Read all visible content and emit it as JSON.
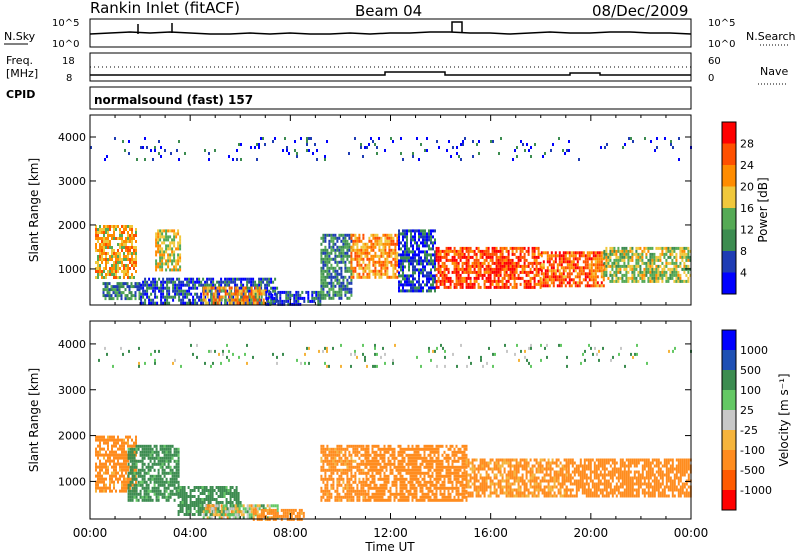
{
  "header": {
    "station": "Rankin Inlet (fitACF)",
    "beam": "Beam 04",
    "date": "08/Dec/2009"
  },
  "top_panel": {
    "left_label": "N.Sky",
    "left_ticks": [
      "10^5",
      "10^0"
    ],
    "right_ticks": [
      "10^5",
      "10^0"
    ],
    "right_label": "N.Search"
  },
  "freq_panel": {
    "left_label_1": "Freq.",
    "left_label_2": "[MHz]",
    "left_ticks": [
      "18",
      "8"
    ],
    "right_ticks": [
      "60",
      "0"
    ],
    "right_label": "Nave"
  },
  "cpid_panel": {
    "label": "CPID",
    "program": "normalsound (fast) 157"
  },
  "colors": {
    "power_scale": [
      "#0000ff",
      "#1e3cb4",
      "#3c8c50",
      "#55aa55",
      "#f0c83c",
      "#ff8c00",
      "#ff5000",
      "#ff0000"
    ],
    "velocity_scale": [
      "#ff0000",
      "#ff5a00",
      "#ff8c1e",
      "#f5b43c",
      "#c8c8c8",
      "#64c864",
      "#3c8c50",
      "#1e50b4",
      "#0000ff"
    ]
  },
  "chart_data": [
    {
      "type": "heatmap",
      "title": "",
      "quantity": "Power",
      "xlabel": "",
      "ylabel": "Slant Range [km]",
      "x_ticks": [
        "00:00",
        "04:00",
        "08:00",
        "12:00",
        "16:00",
        "20:00",
        "00:00"
      ],
      "y_ticks": [
        "1000",
        "2000",
        "3000",
        "4000"
      ],
      "ylim": [
        180,
        4500
      ],
      "colorbar": {
        "label": "Power [dB]",
        "ticks": [
          "4",
          "8",
          "12",
          "16",
          "20",
          "24",
          "28"
        ]
      },
      "regions": [
        {
          "t": [
            0.2,
            1.8
          ],
          "r": [
            800,
            2000
          ],
          "v": 20
        },
        {
          "t": [
            2.6,
            3.6
          ],
          "r": [
            1000,
            1900
          ],
          "v": 18
        },
        {
          "t": [
            0.5,
            2.0
          ],
          "r": [
            300,
            700
          ],
          "v": 10
        },
        {
          "t": [
            2.0,
            7.5
          ],
          "r": [
            200,
            800
          ],
          "v": 6
        },
        {
          "t": [
            4.5,
            7.0
          ],
          "r": [
            220,
            600
          ],
          "v": 20
        },
        {
          "t": [
            7.0,
            9.2
          ],
          "r": [
            200,
            500
          ],
          "v": 5
        },
        {
          "t": [
            9.2,
            10.4
          ],
          "r": [
            300,
            1800
          ],
          "v": 10
        },
        {
          "t": [
            10.4,
            12.3
          ],
          "r": [
            800,
            1800
          ],
          "v": 22
        },
        {
          "t": [
            12.3,
            13.8
          ],
          "r": [
            500,
            1900
          ],
          "v": 6
        },
        {
          "t": [
            13.8,
            18.0
          ],
          "r": [
            600,
            1500
          ],
          "v": 27
        },
        {
          "t": [
            18.0,
            20.5
          ],
          "r": [
            600,
            1400
          ],
          "v": 25
        },
        {
          "t": [
            20.5,
            24.0
          ],
          "r": [
            700,
            1500
          ],
          "v": 16
        },
        {
          "t": [
            0.0,
            24.0
          ],
          "r": [
            3500,
            4000
          ],
          "v": 5
        }
      ]
    },
    {
      "type": "heatmap",
      "title": "",
      "quantity": "Velocity",
      "xlabel": "Time UT",
      "ylabel": "Slant Range [km]",
      "x_ticks": [
        "00:00",
        "04:00",
        "08:00",
        "12:00",
        "16:00",
        "20:00",
        "00:00"
      ],
      "y_ticks": [
        "1000",
        "2000",
        "3000",
        "4000"
      ],
      "ylim": [
        180,
        4500
      ],
      "colorbar": {
        "label": "Velocity [m s⁻¹]",
        "ticks": [
          "1000",
          "500",
          "100",
          "25",
          "-25",
          "-100",
          "-500",
          "-1000"
        ]
      },
      "regions": [
        {
          "t": [
            0.2,
            1.8
          ],
          "r": [
            800,
            2000
          ],
          "v": -200
        },
        {
          "t": [
            1.5,
            3.5
          ],
          "r": [
            600,
            1800
          ],
          "v": 200
        },
        {
          "t": [
            3.5,
            6.0
          ],
          "r": [
            300,
            900
          ],
          "v": 200
        },
        {
          "t": [
            4.5,
            7.5
          ],
          "r": [
            200,
            500
          ],
          "v": -10
        },
        {
          "t": [
            6.5,
            8.5
          ],
          "r": [
            200,
            400
          ],
          "v": -200
        },
        {
          "t": [
            9.2,
            11.0
          ],
          "r": [
            600,
            1800
          ],
          "v": -200
        },
        {
          "t": [
            11.0,
            15.0
          ],
          "r": [
            600,
            1800
          ],
          "v": -300
        },
        {
          "t": [
            15.0,
            19.0
          ],
          "r": [
            700,
            1500
          ],
          "v": -150
        },
        {
          "t": [
            19.0,
            24.0
          ],
          "r": [
            700,
            1500
          ],
          "v": -300
        },
        {
          "t": [
            0.0,
            24.0
          ],
          "r": [
            3500,
            4000
          ],
          "v": 60
        }
      ]
    }
  ]
}
